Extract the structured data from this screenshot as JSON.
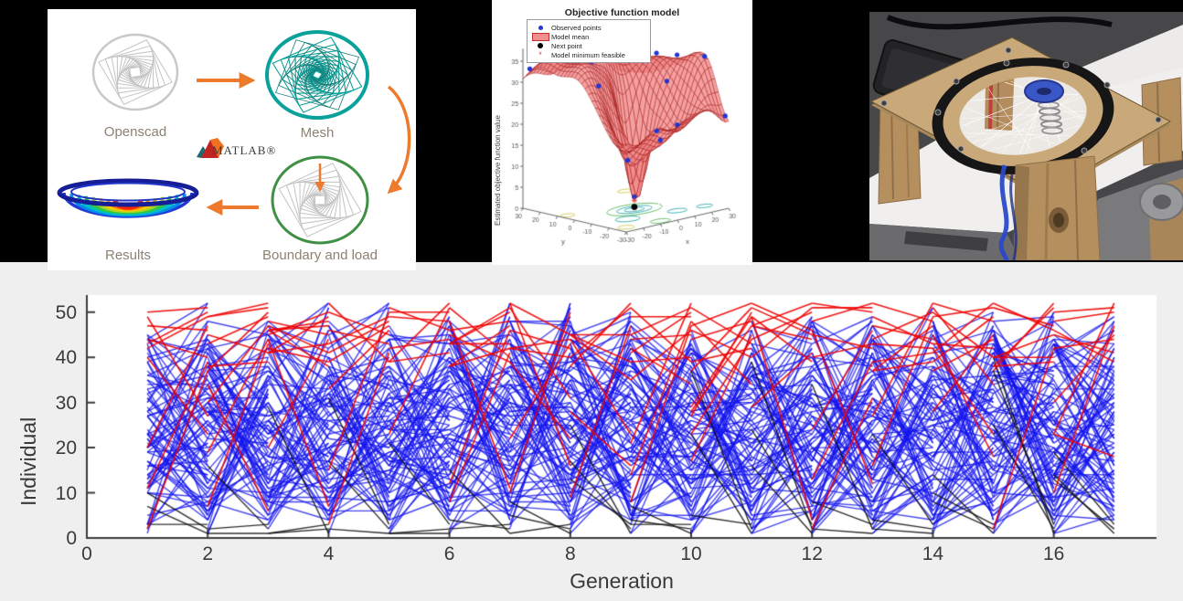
{
  "background": {
    "top_band": "#000000",
    "figure_bg": "#efefef",
    "panel_bg": "#ffffff"
  },
  "workflow": {
    "nodes": {
      "openscad": "Openscad",
      "mesh": "Mesh",
      "boundary": "Boundary and load",
      "results": "Results"
    },
    "matlab_logo_text": "MATLAB®",
    "colors": {
      "arrow": "#ee7b2d",
      "mesh": "#0aa19a",
      "boundary_ring": "#3f8f44",
      "wire": "#c3c3c3",
      "label": "#8b8272",
      "results_rim": "#151e96"
    }
  },
  "photo": {
    "palette": {
      "background": "#47474a",
      "table": "#f0efed",
      "wood": "#b5905e",
      "plate": "#c9a87a",
      "ring": "#161616",
      "disc": "#3a57c8",
      "cable": "#2a49c8",
      "string": "#ffffff"
    }
  },
  "chart_data": [
    {
      "type": "line",
      "title": "",
      "xlabel": "Generation",
      "ylabel": "Individual",
      "x_ticks": [
        0,
        2,
        4,
        6,
        8,
        10,
        12,
        14,
        16
      ],
      "y_ticks": [
        0,
        10,
        20,
        30,
        40,
        50
      ],
      "xlim": [
        0,
        17.7
      ],
      "ylim": [
        0,
        53.4
      ],
      "generations": 17,
      "population_size": 52,
      "line_types": [
        {
          "name": "crossover child link",
          "color": "#1414ee"
        },
        {
          "name": "mutation child link",
          "color": "#f00000"
        },
        {
          "name": "elite child link",
          "color": "#0c0c0c"
        }
      ],
      "generator": {
        "seed": 21,
        "elite_count": 3,
        "elite_parent_max": 40,
        "elite_bias": 2.2,
        "child_min": 4,
        "mutation_zone_start": 39,
        "mutation_zone_prob": 0.6,
        "stray_mutation_prob": 0.045
      }
    },
    {
      "type": "surface",
      "title": "Objective function model",
      "xlabel": "x",
      "ylabel": "y",
      "zlabel": "Estimated objective function value",
      "x_ticks": [
        -30,
        -20,
        -10,
        0,
        10,
        20,
        30
      ],
      "y_ticks": [
        30,
        20,
        10,
        0,
        -10,
        -20,
        -30
      ],
      "z_ticks": [
        0,
        5,
        10,
        15,
        20,
        25,
        30,
        35
      ],
      "xlim": [
        -30,
        30
      ],
      "ylim": [
        -30,
        30
      ],
      "zlim": [
        0,
        38
      ],
      "legend": [
        {
          "label": "Observed points",
          "marker": "blue-dot"
        },
        {
          "label": "Model mean",
          "marker": "red-patch"
        },
        {
          "label": "Next point",
          "marker": "black-dot"
        },
        {
          "label": "Model minimum feasible",
          "marker": "red-star"
        }
      ],
      "surface_model": {
        "base": 26.5,
        "bumps": [
          [
            -25,
            20,
            9,
            170
          ],
          [
            28,
            -18,
            11,
            150
          ],
          [
            3,
            26,
            9,
            160
          ],
          [
            13,
            22,
            6,
            120
          ],
          [
            -3,
            8,
            8,
            100
          ],
          [
            20,
            2,
            7,
            160
          ],
          [
            -18,
            2,
            6,
            130
          ],
          [
            -28,
            -2,
            5,
            120
          ]
        ],
        "dips": [
          [
            1,
            -4,
            26,
            50
          ],
          [
            -13,
            -14,
            13,
            80
          ],
          [
            12,
            -18,
            9,
            110
          ],
          [
            -26,
            -26,
            8,
            100
          ],
          [
            29,
            -29,
            10,
            90
          ],
          [
            -6,
            -26,
            7,
            90
          ]
        ]
      },
      "observed_points": [
        [
          -25,
          20
        ],
        [
          28,
          -18
        ],
        [
          3,
          26
        ],
        [
          13,
          22
        ],
        [
          -3,
          8
        ],
        [
          20,
          2
        ],
        [
          -18,
          2
        ],
        [
          1,
          -4
        ],
        [
          -13,
          -14
        ],
        [
          12,
          -18
        ],
        [
          29,
          -29
        ],
        [
          -22,
          -6
        ],
        [
          8,
          10
        ],
        [
          -8,
          24
        ],
        [
          22,
          18
        ],
        [
          -28,
          28
        ],
        [
          16,
          -8
        ],
        [
          -4,
          -24
        ],
        [
          6,
          -12
        ],
        [
          25,
          -5
        ],
        [
          -16,
          14
        ]
      ],
      "next_point": [
        1,
        -4
      ],
      "min_feasible_point": [
        1,
        -4
      ],
      "floor_contours": [
        [
          1,
          -4,
          5,
          3,
          "#2fa8a8"
        ],
        [
          1,
          -4,
          9,
          5,
          "#2fa8a8"
        ],
        [
          1,
          -4,
          14,
          8,
          "#58b858"
        ],
        [
          -13,
          -14,
          6,
          4,
          "#2fa8a8"
        ],
        [
          12,
          -18,
          5,
          3,
          "#2fa8a8"
        ],
        [
          -24,
          -24,
          4,
          3,
          "#cfc84e"
        ],
        [
          26,
          -20,
          4,
          2.5,
          "#2fa8a8"
        ],
        [
          -26,
          8,
          3.5,
          2.5,
          "#cfc84e"
        ],
        [
          22,
          22,
          4,
          2.5,
          "#cfc84e"
        ],
        [
          -6,
          -26,
          5,
          3,
          "#58b858"
        ]
      ],
      "surface_colors": {
        "fill": "#f28b8b",
        "edge": "#9e1010",
        "point": "#1f35d4"
      }
    }
  ]
}
